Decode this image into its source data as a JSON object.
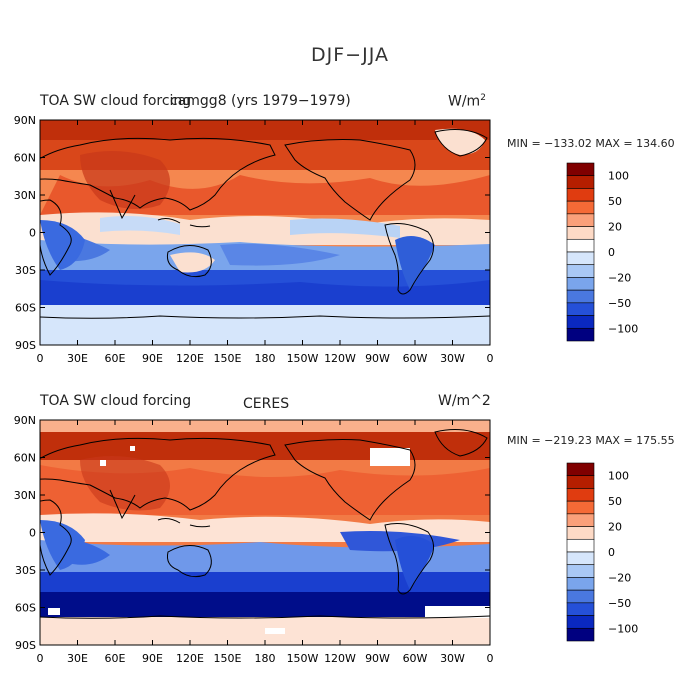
{
  "title": "DJF−JJA",
  "panels": [
    {
      "left_title": "TOA SW cloud forcing",
      "center_title": "camgg8 (yrs 1979−1979)",
      "units": "W/m",
      "units_sup": "2",
      "minmax": "MIN = −133.02  MAX = 134.60"
    },
    {
      "left_title": "TOA SW cloud forcing",
      "center_title": "CERES",
      "units": "W/m^2",
      "units_sup": "",
      "minmax": "MIN = −219.23  MAX = 175.55"
    }
  ],
  "lat_ticks": [
    "90N",
    "60N",
    "30N",
    "0",
    "30S",
    "60S",
    "90S"
  ],
  "lon_ticks": [
    "0",
    "30E",
    "60E",
    "90E",
    "120E",
    "150E",
    "180",
    "150W",
    "120W",
    "90W",
    "60W",
    "30W",
    "0"
  ],
  "colorbar": {
    "colors": [
      "#800000",
      "#b51e00",
      "#e03c10",
      "#f56a36",
      "#faa07a",
      "#fddac6",
      "#ffffff",
      "#d6e6fb",
      "#a9c8f5",
      "#7aa5ec",
      "#4a78e0",
      "#2550d8",
      "#0a28c0",
      "#000080"
    ],
    "labels": [
      "100",
      "50",
      "20",
      "0",
      "−20",
      "−50",
      "−100"
    ]
  },
  "colors": {
    "coast": "#000000",
    "strong_pos": "#c52e0c",
    "pos": "#ec5a2e",
    "weak_pos": "#f9b08c",
    "neutral": "#fde3d5",
    "weak_neg": "#b9d3f5",
    "neg": "#5a86e6",
    "strong_neg": "#1a3fcf",
    "deep_neg": "#000d8a",
    "missing": "#ffffff"
  }
}
